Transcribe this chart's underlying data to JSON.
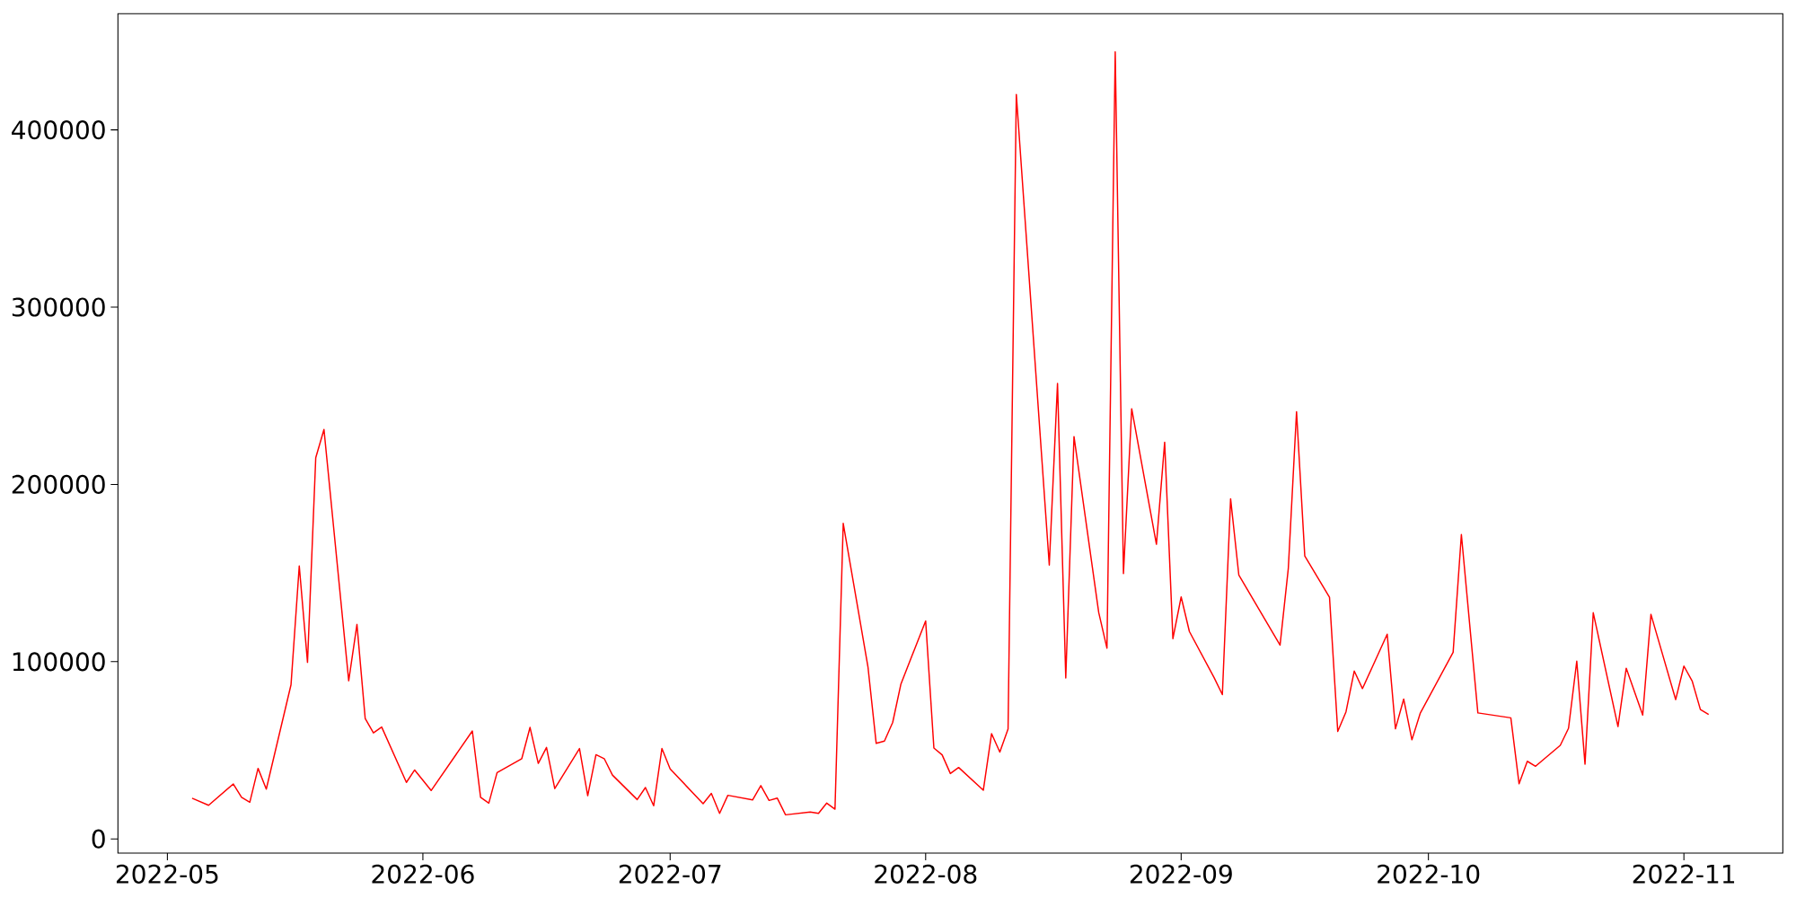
{
  "chart_data": {
    "type": "line",
    "color": "#ff0000",
    "x": [
      "2022-05-04",
      "2022-05-06",
      "2022-05-09",
      "2022-05-10",
      "2022-05-11",
      "2022-05-12",
      "2022-05-13",
      "2022-05-16",
      "2022-05-17",
      "2022-05-18",
      "2022-05-19",
      "2022-05-20",
      "2022-05-23",
      "2022-05-24",
      "2022-05-25",
      "2022-05-26",
      "2022-05-27",
      "2022-05-30",
      "2022-05-31",
      "2022-06-02",
      "2022-06-07",
      "2022-06-08",
      "2022-06-09",
      "2022-06-10",
      "2022-06-13",
      "2022-06-14",
      "2022-06-15",
      "2022-06-16",
      "2022-06-17",
      "2022-06-20",
      "2022-06-21",
      "2022-06-22",
      "2022-06-23",
      "2022-06-24",
      "2022-06-27",
      "2022-06-28",
      "2022-06-29",
      "2022-06-30",
      "2022-07-01",
      "2022-07-05",
      "2022-07-06",
      "2022-07-07",
      "2022-07-08",
      "2022-07-11",
      "2022-07-12",
      "2022-07-13",
      "2022-07-14",
      "2022-07-15",
      "2022-07-18",
      "2022-07-19",
      "2022-07-20",
      "2022-07-21",
      "2022-07-22",
      "2022-07-25",
      "2022-07-26",
      "2022-07-27",
      "2022-07-28",
      "2022-07-29",
      "2022-08-01",
      "2022-08-02",
      "2022-08-03",
      "2022-08-04",
      "2022-08-05",
      "2022-08-08",
      "2022-08-09",
      "2022-08-10",
      "2022-08-11",
      "2022-08-12",
      "2022-08-16",
      "2022-08-17",
      "2022-08-18",
      "2022-08-19",
      "2022-08-22",
      "2022-08-23",
      "2022-08-24",
      "2022-08-25",
      "2022-08-26",
      "2022-08-29",
      "2022-08-30",
      "2022-08-31",
      "2022-09-01",
      "2022-09-02",
      "2022-09-05",
      "2022-09-06",
      "2022-09-07",
      "2022-09-08",
      "2022-09-13",
      "2022-09-14",
      "2022-09-15",
      "2022-09-16",
      "2022-09-19",
      "2022-09-20",
      "2022-09-21",
      "2022-09-22",
      "2022-09-23",
      "2022-09-26",
      "2022-09-27",
      "2022-09-28",
      "2022-09-29",
      "2022-09-30",
      "2022-10-04",
      "2022-10-05",
      "2022-10-07",
      "2022-10-11",
      "2022-10-12",
      "2022-10-13",
      "2022-10-14",
      "2022-10-17",
      "2022-10-18",
      "2022-10-19",
      "2022-10-20",
      "2022-10-21",
      "2022-10-24",
      "2022-10-25",
      "2022-10-27",
      "2022-10-28",
      "2022-10-31",
      "2022-11-01",
      "2022-11-02",
      "2022-11-03",
      "2022-11-04"
    ],
    "values": [
      23000,
      19000,
      31000,
      23500,
      20700,
      39800,
      28100,
      87000,
      154000,
      99600,
      215000,
      231000,
      89200,
      121000,
      67900,
      59800,
      63100,
      31900,
      38900,
      27300,
      60900,
      23500,
      20200,
      37400,
      45300,
      62900,
      42600,
      51600,
      28400,
      51000,
      24400,
      47500,
      45300,
      36000,
      22200,
      29000,
      18700,
      51000,
      39500,
      19900,
      25700,
      14400,
      24600,
      22000,
      30100,
      21700,
      23000,
      13600,
      15200,
      14400,
      20200,
      16800,
      178000,
      97100,
      53900,
      55200,
      65700,
      87400,
      123000,
      51300,
      47400,
      36900,
      40300,
      27500,
      59400,
      49000,
      62000,
      420000,
      154500,
      257000,
      90800,
      227000,
      127700,
      107600,
      444000,
      149700,
      242700,
      166200,
      223800,
      113000,
      136500,
      117000,
      91000,
      81400,
      191900,
      148800,
      109300,
      152500,
      241000,
      159600,
      136300,
      60600,
      71700,
      94700,
      84800,
      115500,
      62100,
      78900,
      55900,
      70800,
      105300,
      171700,
      71100,
      68300,
      31100,
      43800,
      41000,
      52800,
      62400,
      100300,
      42200,
      127600,
      63400,
      96300,
      69900,
      126700,
      78600,
      97500,
      89100,
      73000,
      70200
    ],
    "xlim": [
      "2022-04-25",
      "2022-11-13"
    ],
    "ylim": [
      -8000,
      465500
    ],
    "xticks": [
      {
        "value": "2022-05-01",
        "label": "2022-05"
      },
      {
        "value": "2022-06-01",
        "label": "2022-06"
      },
      {
        "value": "2022-07-01",
        "label": "2022-07"
      },
      {
        "value": "2022-08-01",
        "label": "2022-08"
      },
      {
        "value": "2022-09-01",
        "label": "2022-09"
      },
      {
        "value": "2022-10-01",
        "label": "2022-10"
      },
      {
        "value": "2022-11-01",
        "label": "2022-11"
      }
    ],
    "yticks": [
      0,
      100000,
      200000,
      300000,
      400000
    ]
  }
}
